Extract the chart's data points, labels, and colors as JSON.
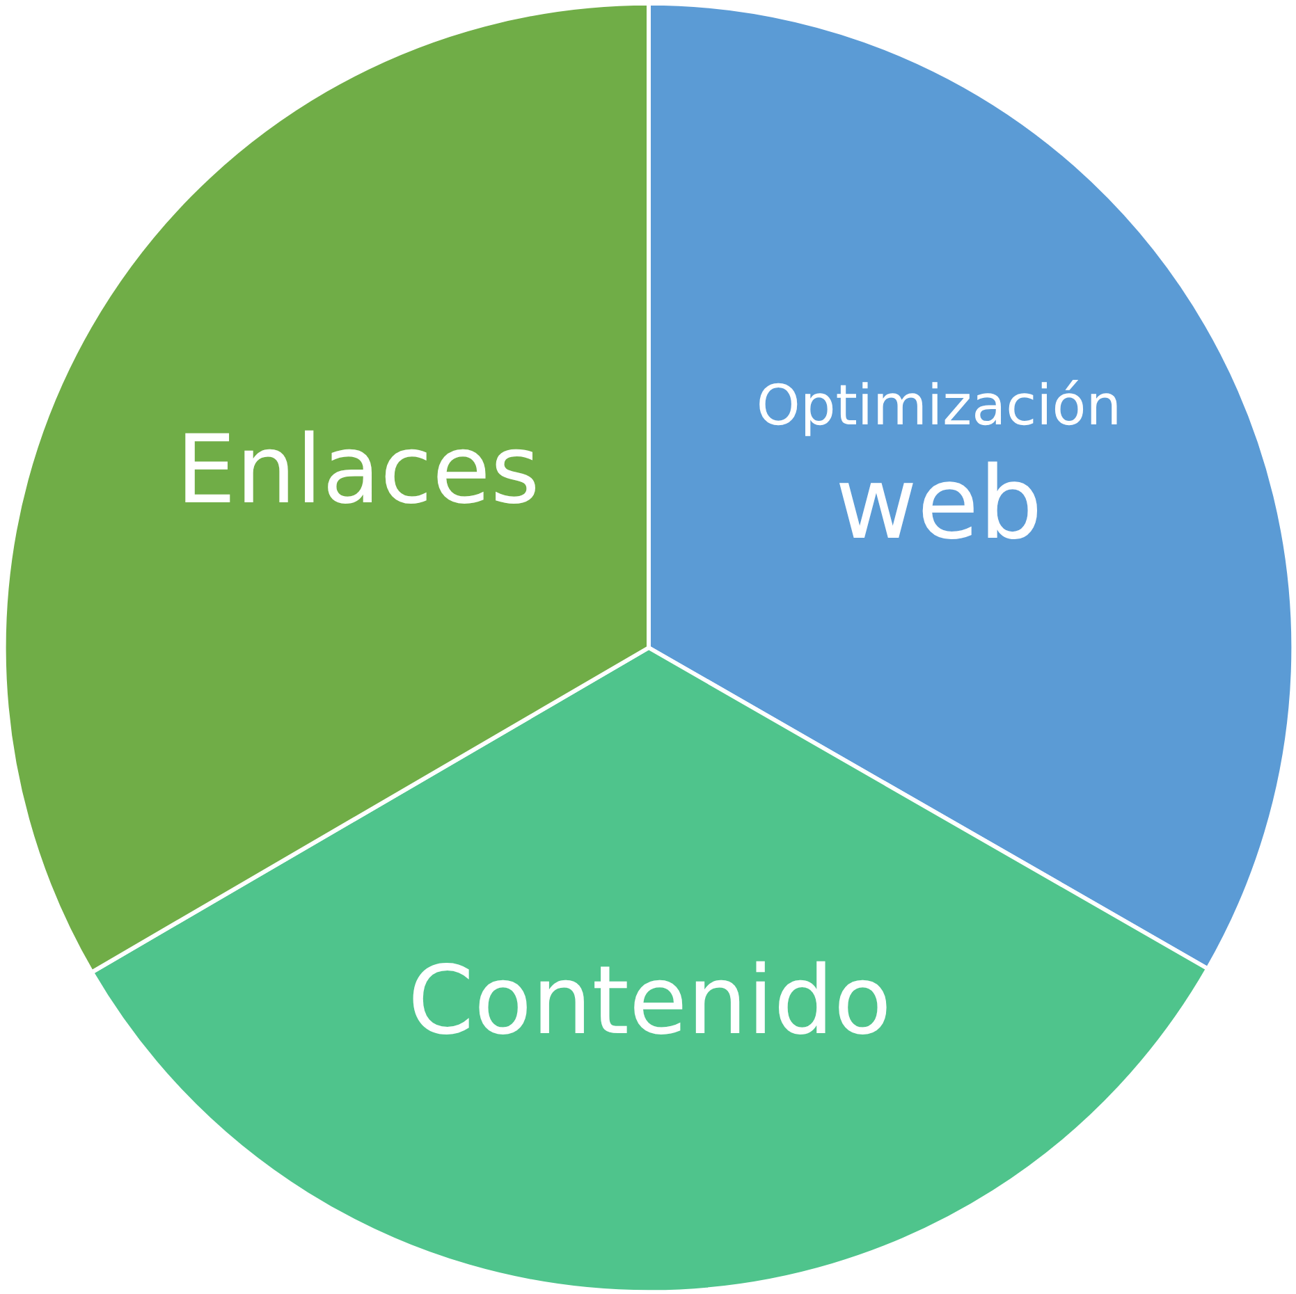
{
  "chart_data": {
    "type": "pie",
    "categories": [
      "Optimización web",
      "Contenido",
      "Enlaces"
    ],
    "values": [
      33.3,
      33.3,
      33.4
    ],
    "colors": [
      "#5b9bd5",
      "#4fc48c",
      "#70ad47"
    ]
  }
}
